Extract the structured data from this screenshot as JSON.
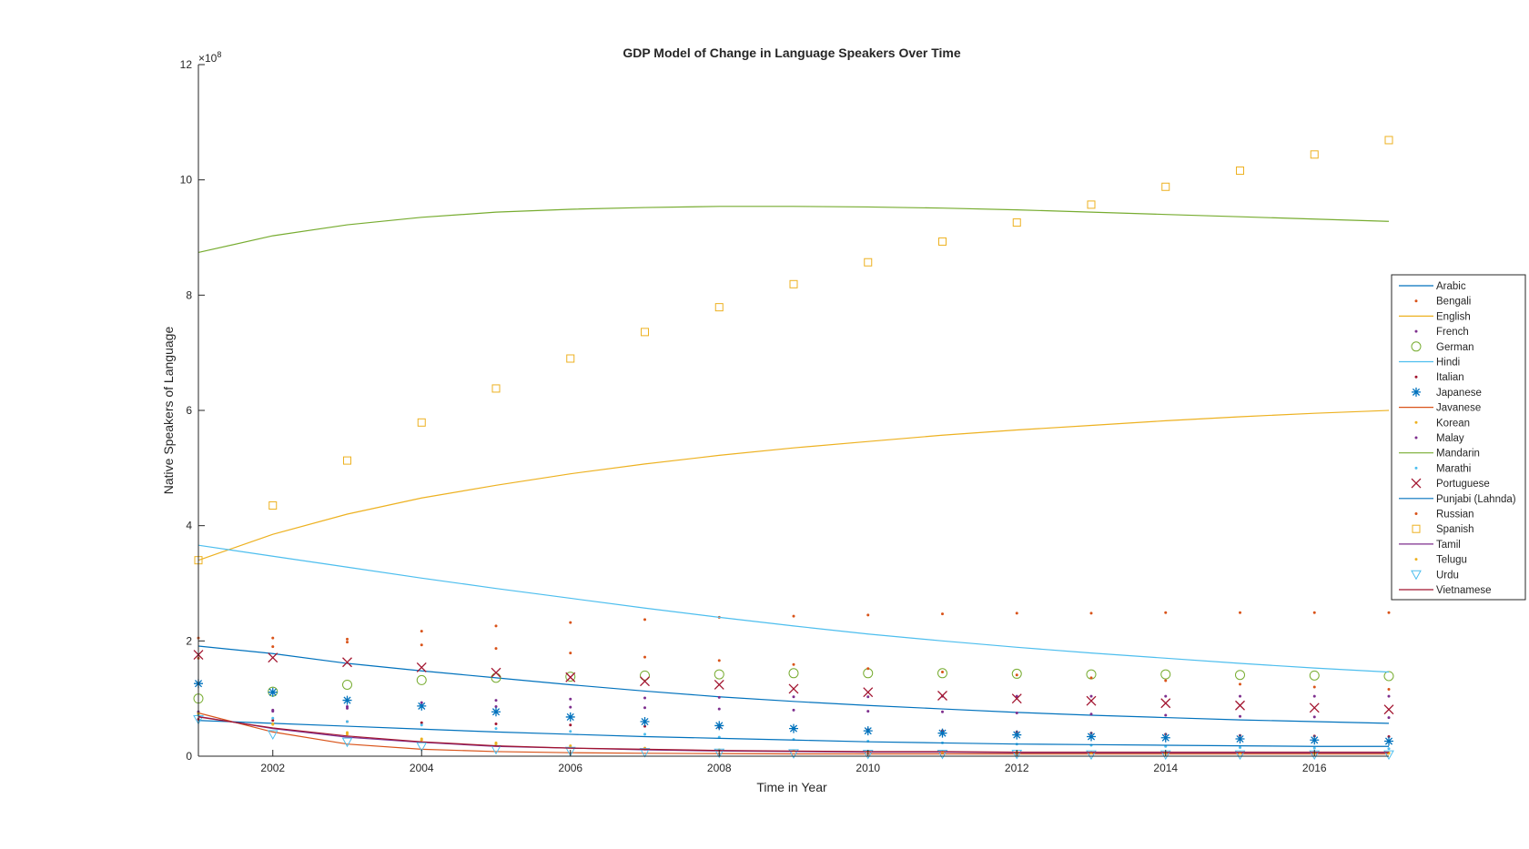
{
  "chart_data": {
    "type": "line",
    "title": "GDP Model of Change in Language Speakers Over Time",
    "xlabel": "Time in Year",
    "ylabel": "Native Speakers of Language",
    "y_exponent_label": "×10",
    "y_exponent_power": "8",
    "xlim": [
      2001,
      2017
    ],
    "ylim": [
      0,
      1200000000
    ],
    "xticks": [
      2002,
      2004,
      2006,
      2008,
      2010,
      2012,
      2014,
      2016
    ],
    "xtick_labels": [
      "2002",
      "2004",
      "2006",
      "2008",
      "2010",
      "2012",
      "2014",
      "2016"
    ],
    "yticks": [
      0,
      200000000,
      400000000,
      600000000,
      800000000,
      1000000000,
      1200000000
    ],
    "ytick_labels": [
      "0",
      "2",
      "4",
      "6",
      "8",
      "10",
      "12"
    ],
    "grid": false,
    "legend_position": "right",
    "x": [
      2001,
      2002,
      2003,
      2004,
      2005,
      2006,
      2007,
      2008,
      2009,
      2010,
      2011,
      2012,
      2013,
      2014,
      2015,
      2016,
      2017
    ],
    "series": [
      {
        "name": "Arabic",
        "style": "line",
        "color": "#0072BD",
        "marker": "none",
        "values": [
          191000000,
          178000000,
          161000000,
          148000000,
          136000000,
          124000000,
          113000000,
          103000000,
          95000000,
          88000000,
          82000000,
          76000000,
          71000000,
          67000000,
          63000000,
          60000000,
          57000000
        ]
      },
      {
        "name": "Bengali",
        "style": "points",
        "color": "#D95319",
        "marker": "dot",
        "values": [
          205000000,
          205000000,
          203000000,
          217000000,
          226000000,
          232000000,
          237000000,
          241000000,
          243000000,
          245000000,
          247000000,
          248000000,
          248000000,
          249000000,
          249000000,
          249000000,
          249000000
        ]
      },
      {
        "name": "English",
        "style": "line",
        "color": "#EDB120",
        "marker": "none",
        "values": [
          340000000,
          385000000,
          420000000,
          448000000,
          470000000,
          490000000,
          507000000,
          522000000,
          535000000,
          546000000,
          557000000,
          566000000,
          574000000,
          582000000,
          589000000,
          595000000,
          600000000
        ]
      },
      {
        "name": "French",
        "style": "points",
        "color": "#7E2F8E",
        "marker": "dot",
        "values": [
          75000000,
          78000000,
          83000000,
          88000000,
          86000000,
          85000000,
          84000000,
          82000000,
          80000000,
          78000000,
          77000000,
          75000000,
          73000000,
          71000000,
          69000000,
          68000000,
          67000000
        ]
      },
      {
        "name": "German",
        "style": "points",
        "color": "#77AC30",
        "marker": "circle",
        "values": [
          100000000,
          112000000,
          124000000,
          132000000,
          136000000,
          138000000,
          140000000,
          142000000,
          144000000,
          144000000,
          144000000,
          143000000,
          142000000,
          142000000,
          141000000,
          140000000,
          139000000
        ]
      },
      {
        "name": "Hindi",
        "style": "line",
        "color": "#4DBEEE",
        "marker": "none",
        "values": [
          366000000,
          347000000,
          328000000,
          309000000,
          291000000,
          274000000,
          257000000,
          241000000,
          226000000,
          212000000,
          200000000,
          189000000,
          179000000,
          170000000,
          161000000,
          153000000,
          146000000
        ]
      },
      {
        "name": "Italian",
        "style": "points",
        "color": "#A2142F",
        "marker": "dot",
        "values": [
          64000000,
          62000000,
          60000000,
          58000000,
          56000000,
          54000000,
          52000000,
          50000000,
          48000000,
          46000000,
          44000000,
          42000000,
          40000000,
          38000000,
          36000000,
          35000000,
          34000000
        ]
      },
      {
        "name": "Japanese",
        "style": "points",
        "color": "#0072BD",
        "marker": "asterisk",
        "values": [
          126000000,
          111000000,
          97000000,
          87000000,
          77000000,
          68000000,
          60000000,
          53000000,
          48000000,
          44000000,
          40000000,
          37000000,
          34000000,
          32000000,
          30000000,
          28000000,
          26000000
        ]
      },
      {
        "name": "Javanese",
        "style": "line",
        "color": "#D95319",
        "marker": "none",
        "values": [
          75000000,
          42000000,
          21000000,
          12000000,
          8000000,
          6000000,
          5000000,
          4500000,
          4000000,
          4000000,
          4000000,
          4000000,
          4000000,
          4000000,
          4000000,
          4000000,
          4000000
        ]
      },
      {
        "name": "Korean",
        "style": "points",
        "color": "#EDB120",
        "marker": "dot",
        "values": [
          77000000,
          55000000,
          38000000,
          28000000,
          21000000,
          16000000,
          12000000,
          10000000,
          9000000,
          8000000,
          7000000,
          7000000,
          6000000,
          6000000,
          6000000,
          6000000,
          6000000
        ]
      },
      {
        "name": "Malay",
        "style": "points",
        "color": "#7E2F8E",
        "marker": "dot",
        "values": [
          77000000,
          80000000,
          86000000,
          93000000,
          97000000,
          99000000,
          101000000,
          102000000,
          103000000,
          103000000,
          104000000,
          104000000,
          104000000,
          104000000,
          104000000,
          104000000,
          104000000
        ]
      },
      {
        "name": "Mandarin",
        "style": "line",
        "color": "#77AC30",
        "marker": "none",
        "values": [
          874000000,
          903000000,
          922000000,
          935000000,
          944000000,
          949000000,
          952000000,
          954000000,
          954000000,
          953000000,
          951000000,
          948000000,
          944000000,
          940000000,
          936000000,
          932000000,
          928000000
        ]
      },
      {
        "name": "Marathi",
        "style": "points",
        "color": "#4DBEEE",
        "marker": "dot",
        "values": [
          72000000,
          66000000,
          60000000,
          54000000,
          48000000,
          43000000,
          38000000,
          33000000,
          29000000,
          26000000,
          23000000,
          21000000,
          19000000,
          17000000,
          15000000,
          14000000,
          13000000
        ]
      },
      {
        "name": "Portuguese",
        "style": "points",
        "color": "#A2142F",
        "marker": "cross",
        "values": [
          176000000,
          171000000,
          163000000,
          154000000,
          145000000,
          137000000,
          130000000,
          124000000,
          117000000,
          111000000,
          105000000,
          100000000,
          96000000,
          92000000,
          88000000,
          84000000,
          81000000
        ]
      },
      {
        "name": "Punjabi (Lahnda)",
        "style": "line",
        "color": "#0072BD",
        "marker": "none",
        "values": [
          62000000,
          57000000,
          52000000,
          47000000,
          42000000,
          38000000,
          34000000,
          31000000,
          28000000,
          25000000,
          23000000,
          21000000,
          20000000,
          19000000,
          18000000,
          17000000,
          17000000
        ]
      },
      {
        "name": "Russian",
        "style": "points",
        "color": "#D95319",
        "marker": "dot",
        "values": [
          170000000,
          190000000,
          198000000,
          193000000,
          187000000,
          179000000,
          172000000,
          166000000,
          159000000,
          152000000,
          146000000,
          141000000,
          136000000,
          131000000,
          125000000,
          120000000,
          116000000
        ]
      },
      {
        "name": "Spanish",
        "style": "points",
        "color": "#EDB120",
        "marker": "square",
        "values": [
          340000000,
          435000000,
          513000000,
          579000000,
          638000000,
          690000000,
          736000000,
          779000000,
          819000000,
          857000000,
          893000000,
          926000000,
          957000000,
          988000000,
          1016000000,
          1044000000,
          1069000000
        ]
      },
      {
        "name": "Tamil",
        "style": "line",
        "color": "#7E2F8E",
        "marker": "none",
        "values": [
          69000000,
          48000000,
          33000000,
          24000000,
          17000000,
          14000000,
          11000000,
          9000000,
          8000000,
          7000000,
          7000000,
          6000000,
          6000000,
          6000000,
          6000000,
          6000000,
          6000000
        ]
      },
      {
        "name": "Telugu",
        "style": "points",
        "color": "#EDB120",
        "marker": "dot",
        "values": [
          74000000,
          56000000,
          41000000,
          30000000,
          23000000,
          18000000,
          14000000,
          11000000,
          9000000,
          8000000,
          7000000,
          6000000,
          6000000,
          5000000,
          5000000,
          5000000,
          5000000
        ]
      },
      {
        "name": "Urdu",
        "style": "points",
        "color": "#4DBEEE",
        "marker": "triangle-down",
        "values": [
          64000000,
          38000000,
          25000000,
          17000000,
          12000000,
          9000000,
          7000000,
          6000000,
          5000000,
          4000000,
          4000000,
          4000000,
          3000000,
          3000000,
          3000000,
          3000000,
          3000000
        ]
      },
      {
        "name": "Vietnamese",
        "style": "line",
        "color": "#A2142F",
        "marker": "none",
        "values": [
          68000000,
          49000000,
          35000000,
          25000000,
          18000000,
          14000000,
          12000000,
          10000000,
          9000000,
          8000000,
          8000000,
          7000000,
          7000000,
          7000000,
          7000000,
          7000000,
          7000000
        ]
      }
    ]
  }
}
